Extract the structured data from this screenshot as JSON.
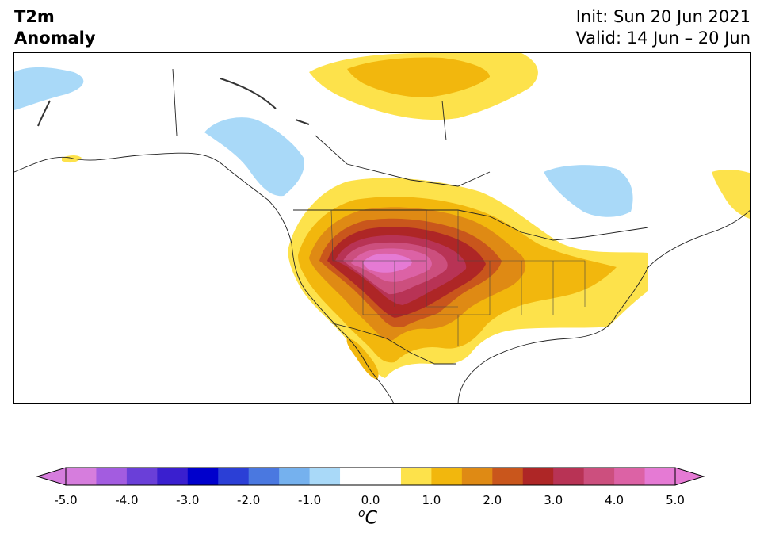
{
  "header": {
    "title_line1": "T2m",
    "title_line2": "Anomaly",
    "init": "Init: Sun 20 Jun 2021",
    "valid": "Valid: 14 Jun – 20 Jun"
  },
  "colorbar": {
    "units_symbol": "o",
    "units_letter": "C",
    "tick_labels": [
      "-5.0",
      "-4.0",
      "-3.0",
      "-2.0",
      "-1.0",
      "0.0",
      "1.0",
      "2.0",
      "3.0",
      "4.0",
      "5.0"
    ],
    "bins": [
      {
        "range": [
          -5.0,
          -4.5
        ],
        "color": "#d67ddd"
      },
      {
        "range": [
          -4.5,
          -4.0
        ],
        "color": "#a35ce0"
      },
      {
        "range": [
          -4.0,
          -3.5
        ],
        "color": "#6a3fd8"
      },
      {
        "range": [
          -3.5,
          -3.0
        ],
        "color": "#3a1fcf"
      },
      {
        "range": [
          -3.0,
          -2.5
        ],
        "color": "#0000cc"
      },
      {
        "range": [
          -2.5,
          -2.0
        ],
        "color": "#2b3fd6"
      },
      {
        "range": [
          -2.0,
          -1.5
        ],
        "color": "#4a78e0"
      },
      {
        "range": [
          -1.5,
          -1.0
        ],
        "color": "#75b1ee"
      },
      {
        "range": [
          -1.0,
          -0.5
        ],
        "color": "#a9d9f8"
      },
      {
        "range": [
          -0.5,
          0.5
        ],
        "color": "#ffffff"
      },
      {
        "range": [
          0.5,
          1.0
        ],
        "color": "#fde24b"
      },
      {
        "range": [
          1.0,
          1.5
        ],
        "color": "#f2b70d"
      },
      {
        "range": [
          1.5,
          2.0
        ],
        "color": "#df8a14"
      },
      {
        "range": [
          2.0,
          2.5
        ],
        "color": "#c9561c"
      },
      {
        "range": [
          2.5,
          3.0
        ],
        "color": "#ae2626"
      },
      {
        "range": [
          3.0,
          3.5
        ],
        "color": "#b83355"
      },
      {
        "range": [
          3.5,
          4.0
        ],
        "color": "#cc4f7e"
      },
      {
        "range": [
          4.0,
          4.5
        ],
        "color": "#dc62a5"
      },
      {
        "range": [
          4.5,
          5.0
        ],
        "color": "#e57ad4"
      }
    ],
    "under_color": "#d67ddd",
    "over_color": "#e57ad4"
  },
  "map": {
    "region": "North America",
    "variable": "2m temperature anomaly"
  }
}
